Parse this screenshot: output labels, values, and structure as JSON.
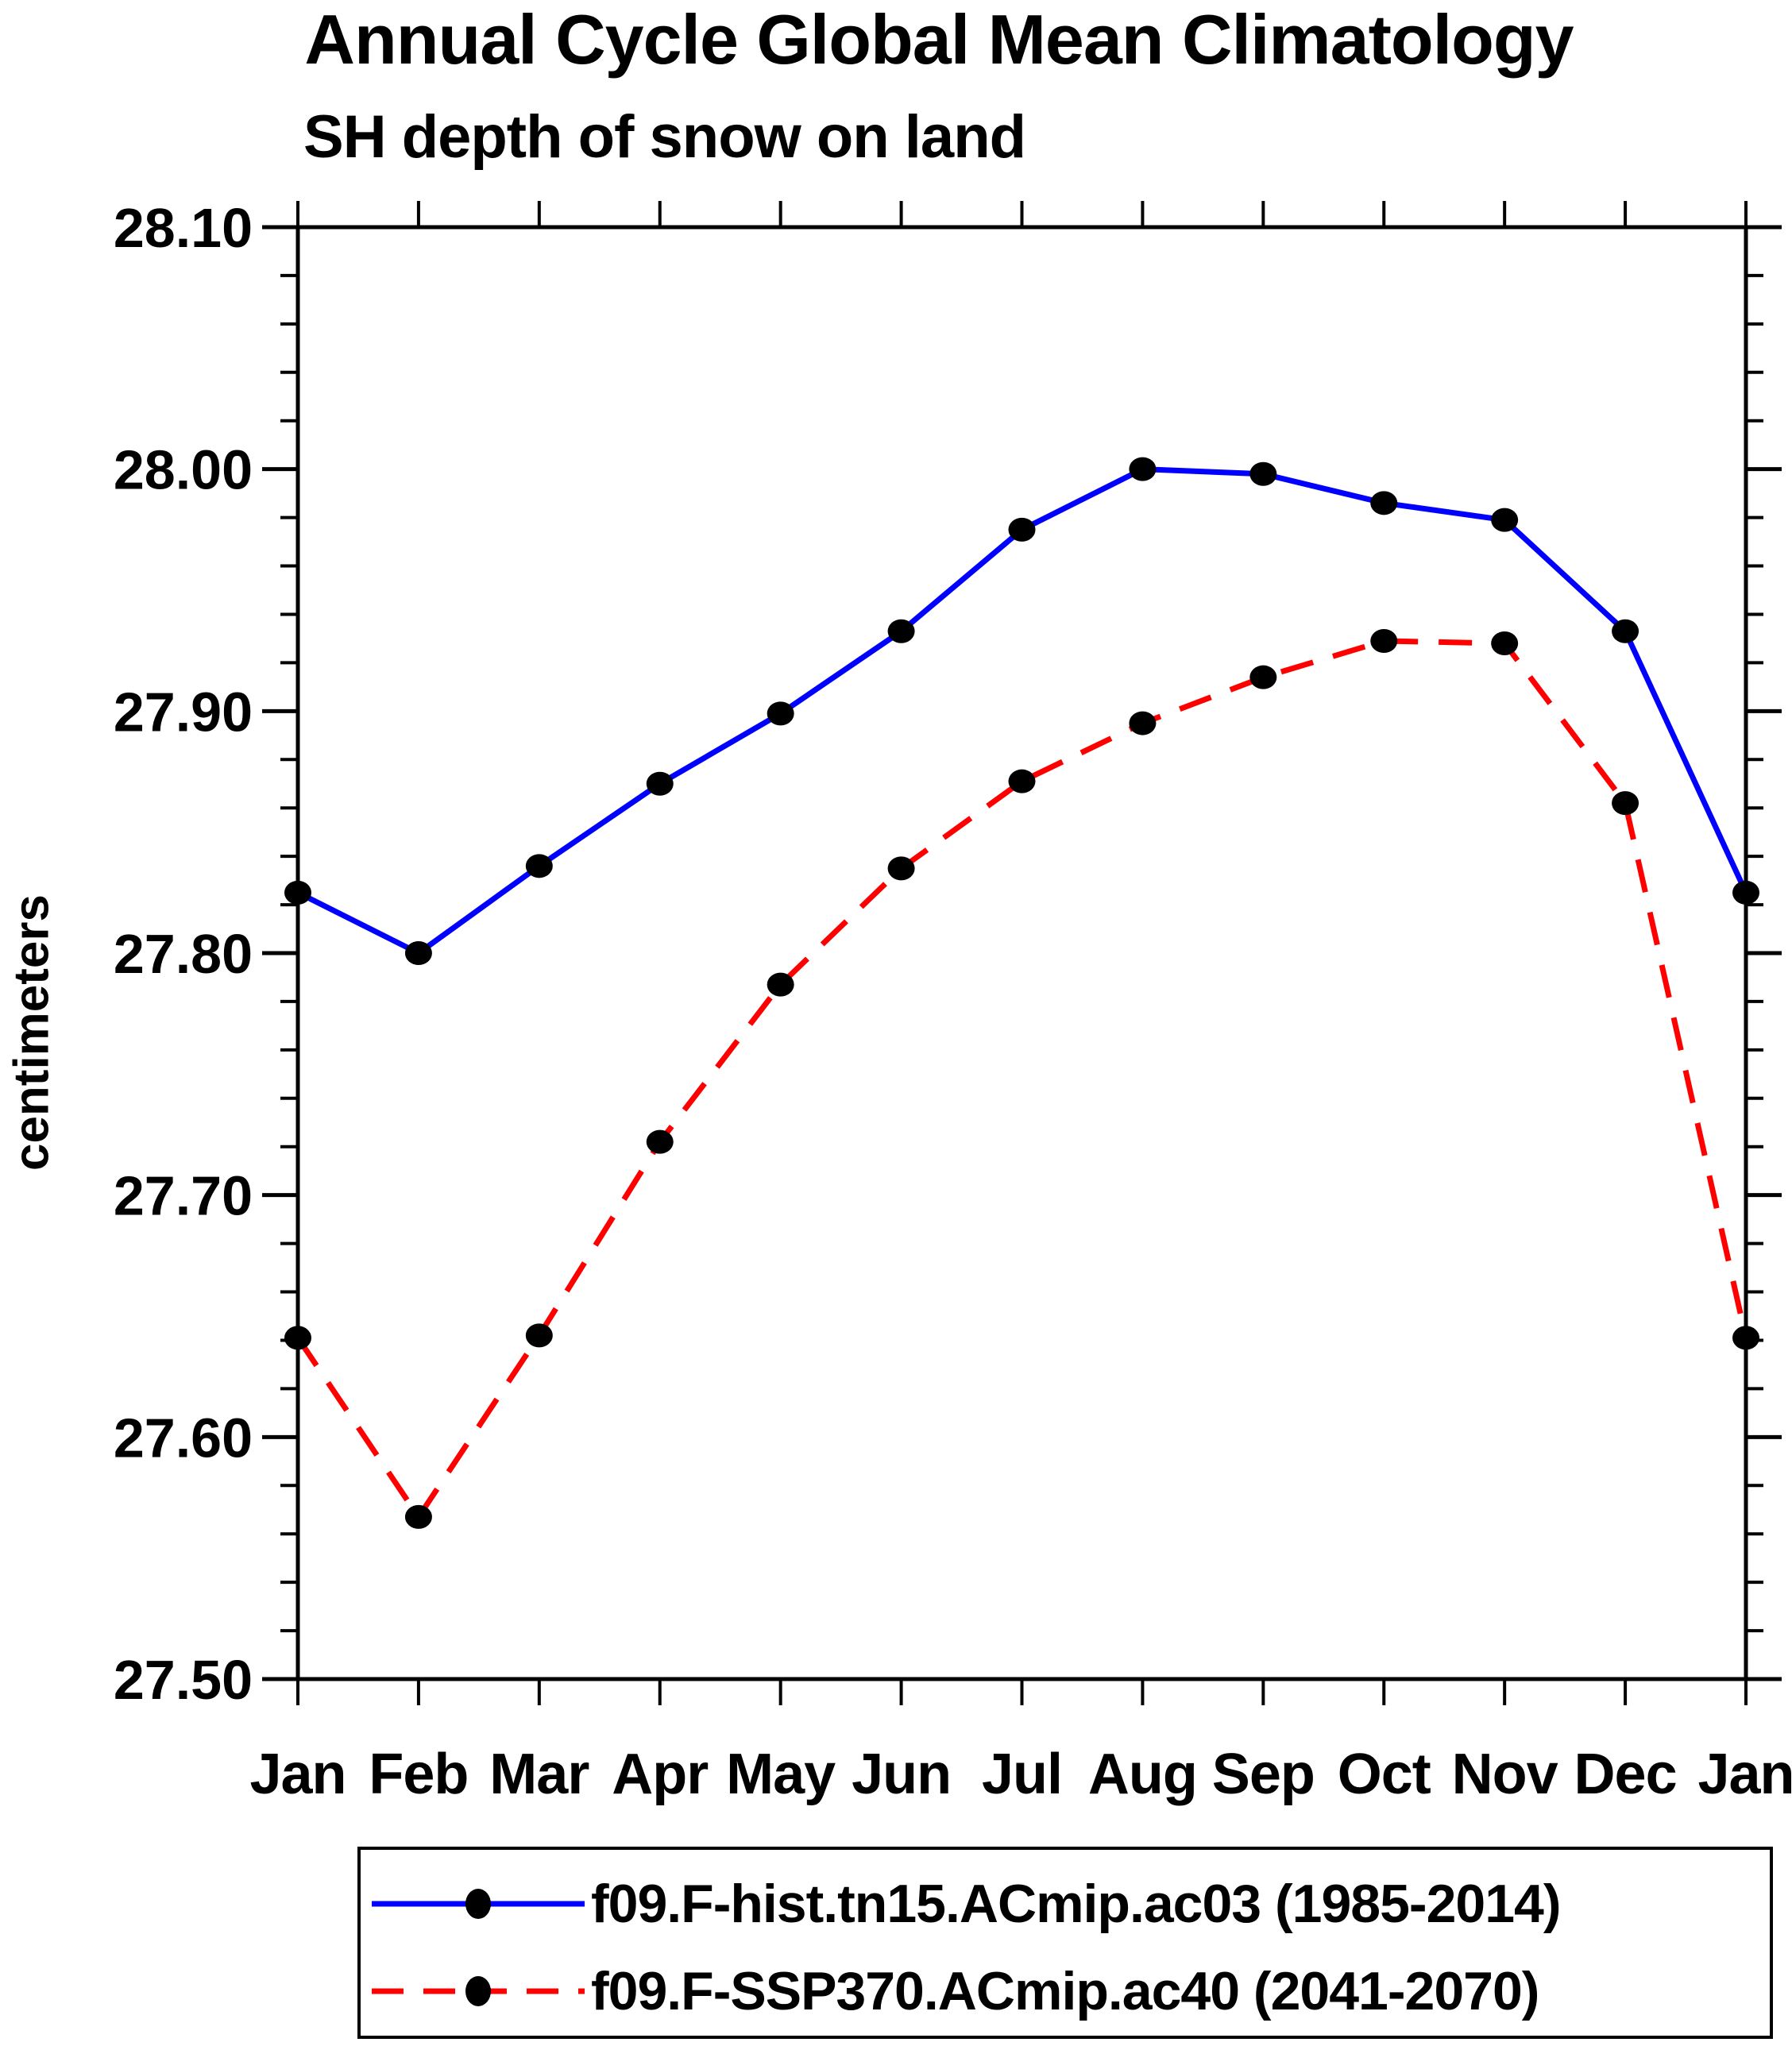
{
  "header": {
    "title": "Annual Cycle Global Mean Climatology",
    "subtitle": "SH depth of snow on land"
  },
  "chart_data": {
    "type": "line",
    "title": "Annual Cycle Global Mean Climatology",
    "subtitle": "SH depth of snow on land",
    "xlabel": "",
    "ylabel": "centimeters",
    "categories": [
      "Jan",
      "Feb",
      "Mar",
      "Apr",
      "May",
      "Jun",
      "Jul",
      "Aug",
      "Sep",
      "Oct",
      "Nov",
      "Dec",
      "Jan"
    ],
    "ylim": [
      27.5,
      28.1
    ],
    "ytick_major": 0.1,
    "ytick_minor": 0.02,
    "ytick_labels": [
      "28.10",
      "28.00",
      "27.90",
      "27.80",
      "27.70",
      "27.60",
      "27.50"
    ],
    "grid": false,
    "legend_position": "bottom",
    "axis_color": "#000000",
    "background_color": "#ffffff",
    "marker_shape": "filled-circle",
    "series": [
      {
        "name": "f09.F-hist.tn15.ACmip.ac03 (1985-2014)",
        "color": "#0000ff",
        "line_style": "solid",
        "marker_color": "#000000",
        "values": [
          27.825,
          27.8,
          27.836,
          27.87,
          27.899,
          27.933,
          27.975,
          28.0,
          27.998,
          27.986,
          27.979,
          27.933,
          27.825
        ]
      },
      {
        "name": "f09.F-SSP370.ACmip.ac40 (2041-2070)",
        "color": "#ff0000",
        "line_style": "dashed",
        "marker_color": "#000000",
        "values": [
          27.641,
          27.567,
          27.642,
          27.722,
          27.787,
          27.835,
          27.871,
          27.895,
          27.914,
          27.929,
          27.928,
          27.862,
          27.641
        ]
      }
    ]
  }
}
